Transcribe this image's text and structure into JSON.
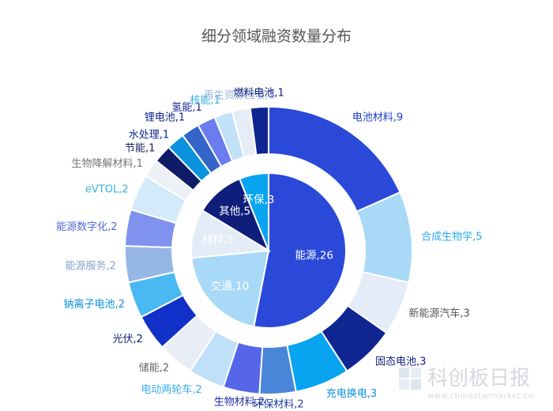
{
  "chart_data": {
    "type": "donut",
    "title": "细分领域融资数量分布",
    "inner": [
      {
        "label": "能源",
        "value": 26,
        "color": "#2a49d9",
        "text_color": "#ffffff"
      },
      {
        "label": "交通",
        "value": 10,
        "color": "#a8d9f7",
        "text_color": "#ffffff"
      },
      {
        "label": "材料",
        "value": 5,
        "color": "#e4ecf7",
        "text_color": "#ffffff"
      },
      {
        "label": "其他",
        "value": 5,
        "color": "#0f1e7a",
        "text_color": "#ffffff"
      },
      {
        "label": "环保",
        "value": 3,
        "color": "#08a4f0",
        "text_color": "#ffffff"
      }
    ],
    "outer": [
      {
        "label": "电池材料",
        "value": 9,
        "color": "#2a49d9",
        "text_color": "#1f3fc9"
      },
      {
        "label": "合成生物学",
        "value": 5,
        "color": "#a8d9f7",
        "text_color": "#2ea8e8"
      },
      {
        "label": "新能源汽车",
        "value": 3,
        "color": "#e4ecf7",
        "text_color": "#555555"
      },
      {
        "label": "固态电池",
        "value": 3,
        "color": "#0f2590",
        "text_color": "#0f1e7a"
      },
      {
        "label": "充电换电",
        "value": 3,
        "color": "#08a4f0",
        "text_color": "#0a8fe0"
      },
      {
        "label": "环保材料",
        "value": 2,
        "color": "#4a86d8",
        "text_color": "#1f3fa0"
      },
      {
        "label": "生物材料",
        "value": 2,
        "color": "#5566e8",
        "text_color": "#1f2fa0"
      },
      {
        "label": "电动两轮车",
        "value": 2,
        "color": "#bfe0f8",
        "text_color": "#39aee8"
      },
      {
        "label": "储能",
        "value": 2,
        "color": "#e9eef6",
        "text_color": "#666666"
      },
      {
        "label": "光伏",
        "value": 2,
        "color": "#1130c8",
        "text_color": "#0f1e7a"
      },
      {
        "label": "钠离子电池",
        "value": 2,
        "color": "#4ab8f2",
        "text_color": "#0a8fe0"
      },
      {
        "label": "能源服务",
        "value": 2,
        "color": "#96b6e6",
        "text_color": "#8aa3cc"
      },
      {
        "label": "能源数字化",
        "value": 2,
        "color": "#7e92ee",
        "text_color": "#5566d8"
      },
      {
        "label": "eVTOL",
        "value": 2,
        "color": "#d3eafb",
        "text_color": "#39aee8"
      },
      {
        "label": "生物降解材料",
        "value": 1,
        "color": "#edf1f7",
        "text_color": "#777777"
      },
      {
        "label": "节能",
        "value": 1,
        "color": "#0e1b66",
        "text_color": "#0f1e5a"
      },
      {
        "label": "水处理",
        "value": 1,
        "color": "#0a92dd",
        "text_color": "#0f2590"
      },
      {
        "label": "锂电池",
        "value": 1,
        "color": "#3366c8",
        "text_color": "#0f2590"
      },
      {
        "label": "氢能",
        "value": 1,
        "color": "#6a7cee",
        "text_color": "#0f2590"
      },
      {
        "label": "核能",
        "value": 1,
        "color": "#c2e2f8",
        "text_color": "#39aee8"
      },
      {
        "label": "再生资源回收",
        "value": 1,
        "color": "#e6edf7",
        "text_color": "#9bb6dc"
      },
      {
        "label": "燃料电池",
        "value": 1,
        "color": "#0f2590",
        "text_color": "#0f1e7a"
      }
    ]
  },
  "watermark": {
    "text": "科创板日报",
    "sub": "www.chinastarmarket.cn"
  }
}
